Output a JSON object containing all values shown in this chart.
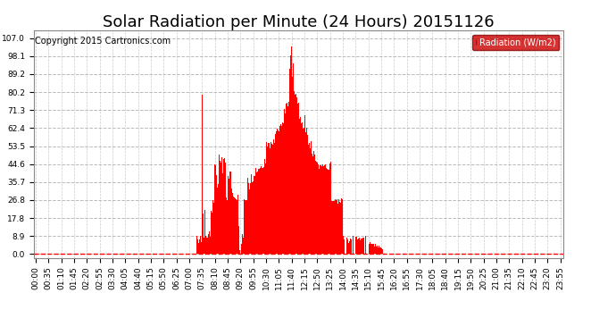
{
  "title": "Solar Radiation per Minute (24 Hours) 20151126",
  "copyright": "Copyright 2015 Cartronics.com",
  "background_color": "#ffffff",
  "bar_color": "#ff0000",
  "y_ticks": [
    0.0,
    8.9,
    17.8,
    26.8,
    35.7,
    44.6,
    53.5,
    62.4,
    71.3,
    80.2,
    89.2,
    98.1,
    107.0
  ],
  "ylim": [
    -2,
    111
  ],
  "total_minutes": 1440,
  "x_tick_interval": 35,
  "legend_label": "Radiation (W/m2)",
  "legend_bg": "#cc0000",
  "legend_text_color": "#ffffff",
  "hline_color": "#ff0000",
  "hline_y": 0.0,
  "grid_color": "#aaaaaa",
  "title_fontsize": 13,
  "copyright_fontsize": 7,
  "axis_fontsize": 6.5
}
